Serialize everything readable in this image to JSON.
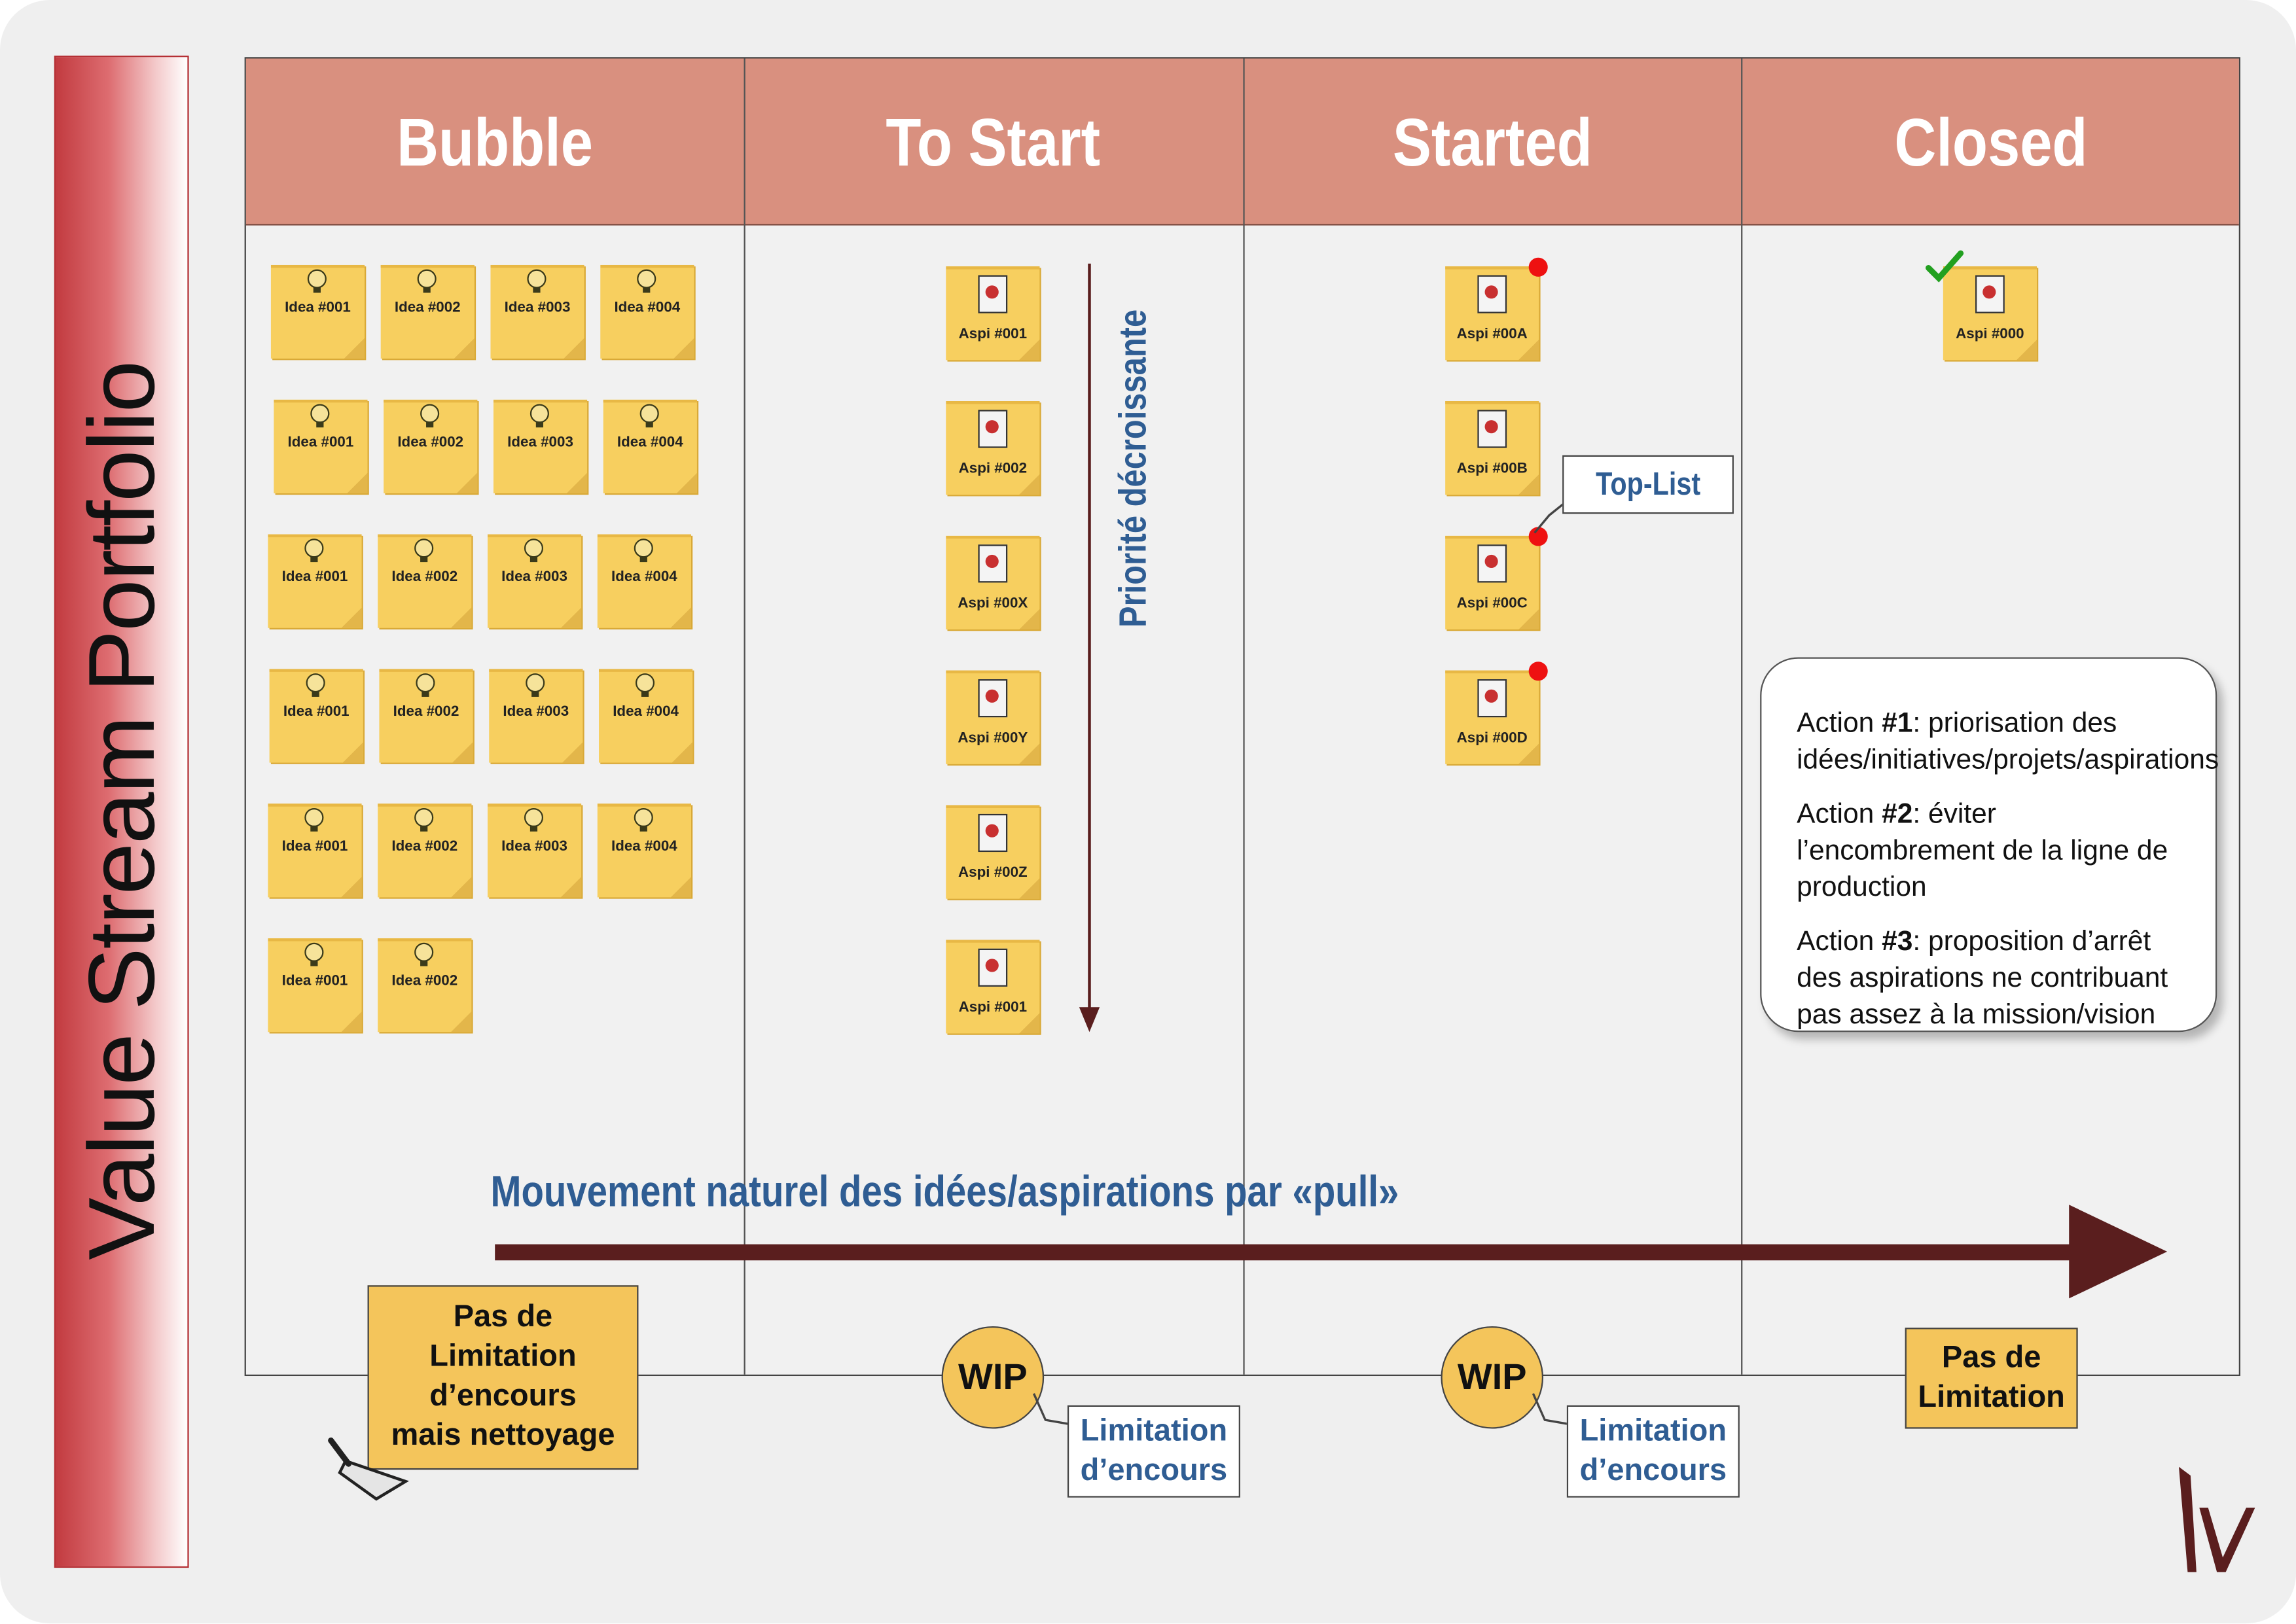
{
  "title": "Value Stream Portfolio",
  "columns": [
    "Bubble",
    "To Start",
    "Started",
    "Closed"
  ],
  "bubble_rows": [
    [
      "Idea #001",
      "Idea #002",
      "Idea #003",
      "Idea #004"
    ],
    [
      "Idea #001",
      "Idea #002",
      "Idea #003",
      "Idea #004"
    ],
    [
      "Idea #001",
      "Idea #002",
      "Idea #003",
      "Idea #004"
    ],
    [
      "Idea #001",
      "Idea #002",
      "Idea #003",
      "Idea #004"
    ],
    [
      "Idea #001",
      "Idea #002",
      "Idea #003",
      "Idea #004"
    ],
    [
      "Idea #001",
      "Idea #002"
    ]
  ],
  "to_start": [
    "Aspi #001",
    "Aspi #002",
    "Aspi #00X",
    "Aspi #00Y",
    "Aspi #00Z",
    "Aspi #001"
  ],
  "started": [
    "Aspi #00A",
    "Aspi #00B",
    "Aspi #00C",
    "Aspi #00D"
  ],
  "closed": [
    "Aspi #000"
  ],
  "priority_label": "Priorité décroissante",
  "toplist_label": "Top-List",
  "actions": [
    {
      "prefix": "Action ",
      "num": "#1",
      "text": ": priorisation des idées/initiatives/projets/aspirations"
    },
    {
      "prefix": "Action ",
      "num": "#2",
      "text": ": éviter l’encombrement de la ligne de production"
    },
    {
      "prefix": "Action ",
      "num": "#3",
      "text": ": proposition d’arrêt des aspirations ne contribuant pas assez à la mission/vision"
    }
  ],
  "flow_label": "Mouvement naturel des idées/aspirations par «pull»",
  "bubble_limit": [
    "Pas de",
    "Limitation",
    "d’encours",
    "mais nettoyage"
  ],
  "wip_label": "WIP",
  "wip_note": [
    "Limitation",
    "d’encours"
  ],
  "closed_limit": [
    "Pas de",
    "Limitation"
  ],
  "colors": {
    "header": "#d9907f",
    "sticky": "#f7cf5f",
    "accent_blue": "#2f5d93",
    "arrow": "#5a1e1e",
    "band": "#c23b40"
  }
}
